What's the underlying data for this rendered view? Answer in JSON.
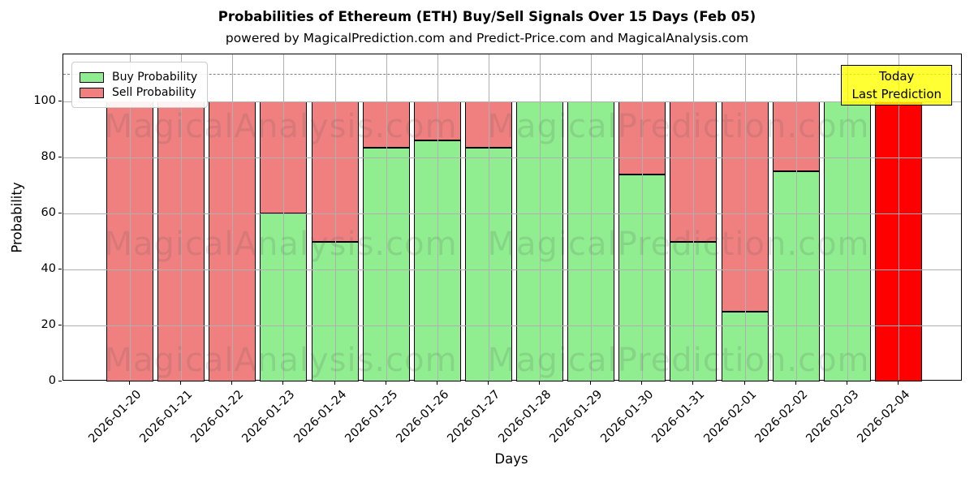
{
  "title": "Probabilities of Ethereum (ETH) Buy/Sell Signals Over 15 Days (Feb 05)",
  "subtitle": "powered by MagicalPrediction.com and Predict-Price.com and MagicalAnalysis.com",
  "legend": [
    {
      "label": "Buy Probability",
      "color": "#90EE90"
    },
    {
      "label": "Sell Probability",
      "color": "#F08080"
    }
  ],
  "annotation": {
    "lines": [
      "Today",
      "Last Prediction"
    ],
    "bg_color": "#FFFF00"
  },
  "axes": {
    "xlabel": "Days",
    "ylabel": "Probability",
    "yticks": [
      0,
      20,
      40,
      60,
      80,
      100
    ],
    "ylim": [
      0,
      116
    ],
    "dashed_line_y": 110,
    "grid": "on, drawn above bars",
    "legend_position": "upper left"
  },
  "watermark": {
    "left_text": "MagicalAnalysis.com",
    "right_text": "MagicalPrediction.com"
  },
  "chart_data": {
    "type": "bar",
    "stacked": true,
    "categories": [
      "2026-01-20",
      "2026-01-21",
      "2026-01-22",
      "2026-01-23",
      "2026-01-24",
      "2026-01-25",
      "2026-01-26",
      "2026-01-27",
      "2026-01-28",
      "2026-01-29",
      "2026-01-30",
      "2026-01-31",
      "2026-02-01",
      "2026-02-02",
      "2026-02-03",
      "2026-02-04"
    ],
    "series": [
      {
        "name": "Buy Probability",
        "color": "#90EE90",
        "values": [
          0,
          0,
          0,
          60,
          50,
          83.5,
          86,
          83.5,
          100,
          100,
          74,
          50,
          25,
          75,
          100,
          0
        ]
      },
      {
        "name": "Sell Probability",
        "color": "#F08080",
        "values": [
          100,
          100,
          100,
          40,
          50,
          16.5,
          14,
          16.5,
          0,
          0,
          26,
          50,
          75,
          25,
          0,
          100
        ]
      }
    ],
    "special_bars": [
      {
        "index": 15,
        "sell_color": "#FF0000",
        "note": "Today / Last Prediction bar"
      }
    ],
    "title": "Probabilities of Ethereum (ETH) Buy/Sell Signals Over 15 Days (Feb 05)",
    "xlabel": "Days",
    "ylabel": "Probability"
  }
}
